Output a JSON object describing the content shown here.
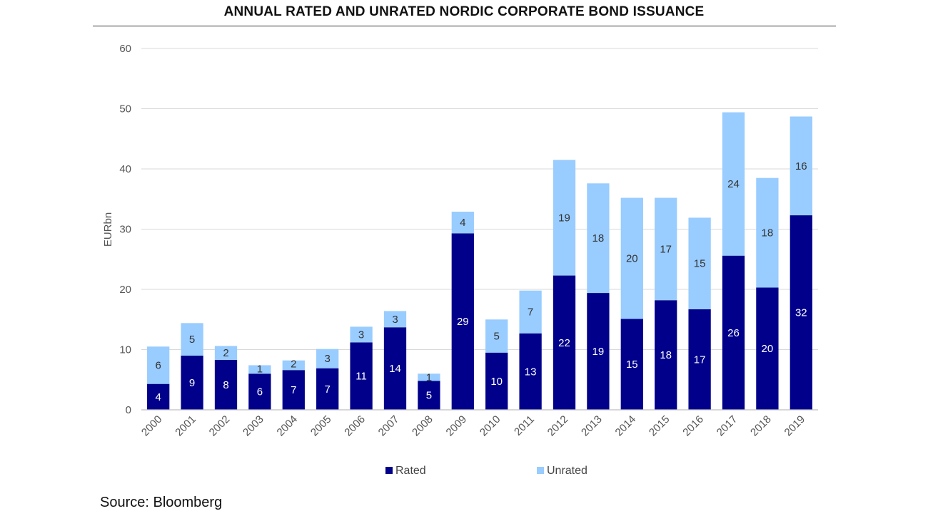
{
  "title": "ANNUAL RATED AND UNRATED NORDIC CORPORATE BOND ISSUANCE",
  "source": "Source: Bloomberg",
  "colors": {
    "rated": "#00008b",
    "unrated": "#99ccff",
    "grid": "#d9d9d9",
    "axis": "#bfbfbf"
  },
  "chart_data": {
    "type": "bar",
    "stacked": true,
    "categories": [
      "2000",
      "2001",
      "2002",
      "2003",
      "2004",
      "2005",
      "2006",
      "2007",
      "2008",
      "2009",
      "2010",
      "2011",
      "2012",
      "2013",
      "2014",
      "2015",
      "2016",
      "2017",
      "2018",
      "2019"
    ],
    "series": [
      {
        "name": "Rated",
        "values": [
          4.3,
          9.0,
          8.3,
          6.0,
          6.6,
          6.9,
          11.2,
          13.7,
          4.8,
          29.3,
          9.5,
          12.7,
          22.3,
          19.4,
          15.1,
          18.2,
          16.7,
          25.6,
          20.3,
          32.3
        ],
        "labels": [
          "4",
          "9",
          "8",
          "6",
          "7",
          "7",
          "11",
          "14",
          "5",
          "29",
          "10",
          "13",
          "22",
          "19",
          "15",
          "18",
          "17",
          "26",
          "20",
          "32"
        ]
      },
      {
        "name": "Unrated",
        "values": [
          6.2,
          5.4,
          2.3,
          1.4,
          1.6,
          3.2,
          2.6,
          2.7,
          1.2,
          3.6,
          5.5,
          7.1,
          19.2,
          18.2,
          20.1,
          17.0,
          15.2,
          23.8,
          18.2,
          16.4
        ],
        "labels": [
          "6",
          "5",
          "2",
          "1",
          "2",
          "3",
          "3",
          "3",
          "1",
          "4",
          "5",
          "7",
          "19",
          "18",
          "20",
          "17",
          "15",
          "24",
          "18",
          "16"
        ]
      }
    ],
    "ylabel": "EURbn",
    "xlabel": "",
    "ylim": [
      0,
      60
    ],
    "yticks": [
      0,
      10,
      20,
      30,
      40,
      50,
      60
    ],
    "grid": true,
    "legend": "bottom-center"
  }
}
